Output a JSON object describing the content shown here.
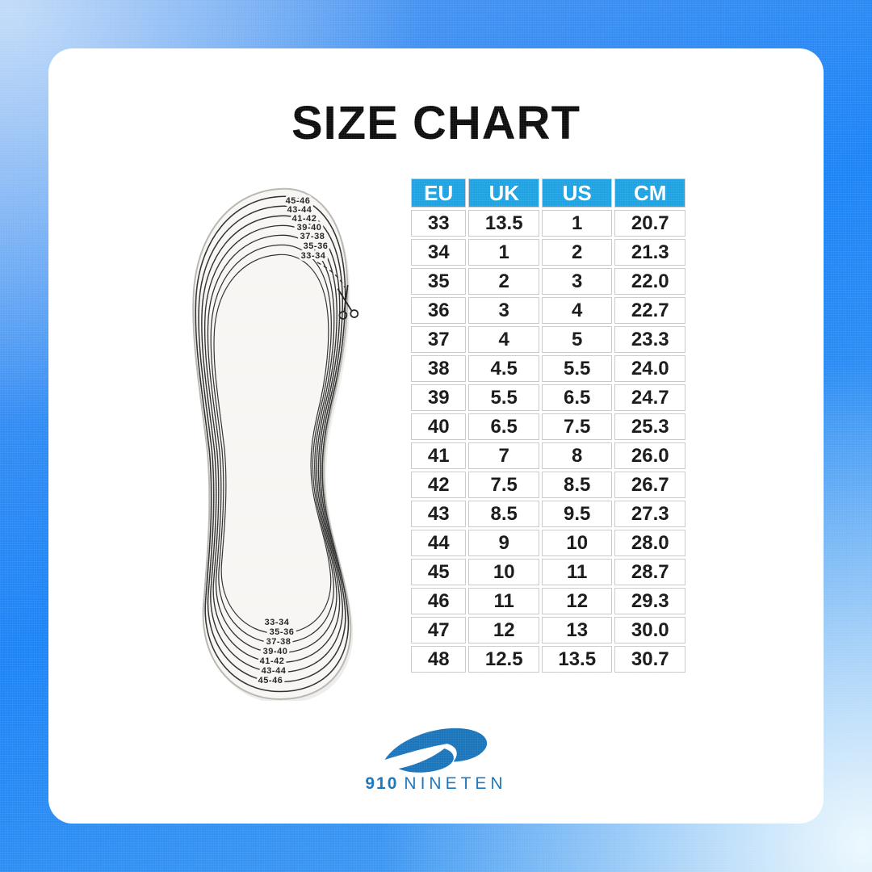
{
  "page_title": "SIZE CHART",
  "chart_data": {
    "type": "table",
    "title": "SIZE CHART",
    "columns": [
      "EU",
      "UK",
      "US",
      "CM"
    ],
    "rows": [
      [
        "33",
        "13.5",
        "1",
        "20.7"
      ],
      [
        "34",
        "1",
        "2",
        "21.3"
      ],
      [
        "35",
        "2",
        "3",
        "22.0"
      ],
      [
        "36",
        "3",
        "4",
        "22.7"
      ],
      [
        "37",
        "4",
        "5",
        "23.3"
      ],
      [
        "38",
        "4.5",
        "5.5",
        "24.0"
      ],
      [
        "39",
        "5.5",
        "6.5",
        "24.7"
      ],
      [
        "40",
        "6.5",
        "7.5",
        "25.3"
      ],
      [
        "41",
        "7",
        "8",
        "26.0"
      ],
      [
        "42",
        "7.5",
        "8.5",
        "26.7"
      ],
      [
        "43",
        "8.5",
        "9.5",
        "27.3"
      ],
      [
        "44",
        "9",
        "10",
        "28.0"
      ],
      [
        "45",
        "10",
        "11",
        "28.7"
      ],
      [
        "46",
        "11",
        "12",
        "29.3"
      ],
      [
        "47",
        "12",
        "13",
        "30.0"
      ],
      [
        "48",
        "12.5",
        "13.5",
        "30.7"
      ]
    ]
  },
  "insole": {
    "top_labels": [
      "45-46",
      "43-44",
      "41-42",
      "39-40",
      "37-38",
      "35-36",
      "33-34"
    ],
    "bottom_labels": [
      "33-34",
      "35-36",
      "37-38",
      "39-40",
      "41-42",
      "43-44",
      "45-46"
    ]
  },
  "icons": {
    "scissors_icon": "✂"
  },
  "brand": {
    "logo_number": "910",
    "logo_name": "NINETEN"
  },
  "colors": {
    "table_header_bg": "#1ea3e2",
    "logo_blue": "#1b75bb",
    "background_blue": "#1c84f6",
    "title_color": "#0d0d0d"
  }
}
